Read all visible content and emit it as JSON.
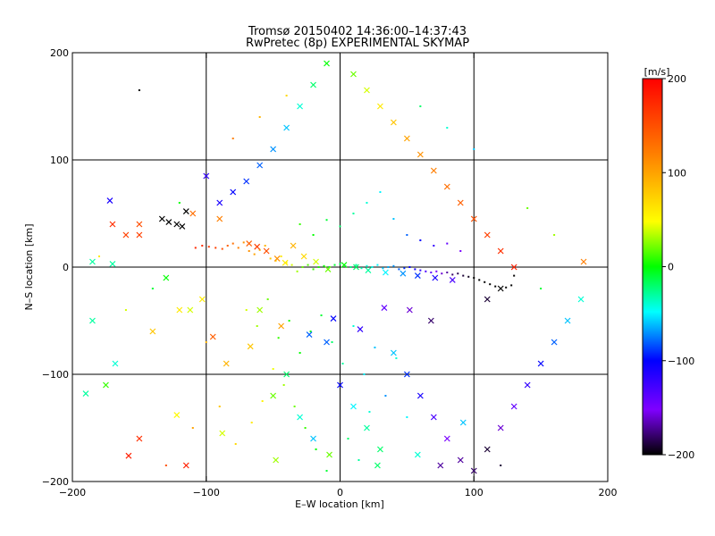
{
  "chart_data": {
    "type": "scatter",
    "title": "Tromsø 20150402 14:36:00–14:37:43",
    "subtitle": "RwPretec (8p) EXPERIMENTAL SKYMAP",
    "xlabel": "E–W location [km]",
    "ylabel": "N–S location [km]",
    "xlim": [
      -200,
      200
    ],
    "ylim": [
      -200,
      200
    ],
    "xticks": [
      "−200",
      "−100",
      "0",
      "100",
      "200"
    ],
    "yticks": [
      "−200",
      "−100",
      "0",
      "100",
      "200"
    ],
    "grid": true,
    "colorbar": {
      "label": "[m/s]",
      "range": [
        -200,
        200
      ],
      "ticks": [
        "200",
        "100",
        "0",
        "−100",
        "−200"
      ],
      "colormap": [
        "#000000",
        "#7f00ff",
        "#0000ff",
        "#00ffff",
        "#00ff00",
        "#ffff00",
        "#ff7f00",
        "#ff0000"
      ]
    },
    "series": [
      {
        "marker": "dot",
        "points": [
          [
            -108,
            18,
            175
          ],
          [
            -103,
            20,
            170
          ],
          [
            -98,
            19,
            165
          ],
          [
            -93,
            18,
            160
          ],
          [
            -88,
            17,
            150
          ],
          [
            -84,
            20,
            140
          ],
          [
            -80,
            22,
            130
          ],
          [
            -76,
            18,
            120
          ],
          [
            -72,
            23,
            110
          ],
          [
            -68,
            15,
            110
          ],
          [
            -64,
            12,
            100
          ],
          [
            -60,
            16,
            95
          ],
          [
            -56,
            20,
            90
          ],
          [
            -52,
            8,
            80
          ],
          [
            -48,
            6,
            70
          ],
          [
            -44,
            10,
            60
          ],
          [
            -40,
            4,
            50
          ],
          [
            -36,
            2,
            40
          ],
          [
            -32,
            -4,
            30
          ],
          [
            -28,
            0,
            20
          ],
          [
            -24,
            2,
            15
          ],
          [
            -20,
            -2,
            10
          ],
          [
            -16,
            0,
            5
          ],
          [
            -12,
            1,
            0
          ],
          [
            -8,
            0,
            -5
          ],
          [
            -4,
            2,
            -10
          ],
          [
            0,
            3,
            -15
          ],
          [
            4,
            1,
            -20
          ],
          [
            8,
            0,
            -25
          ],
          [
            12,
            2,
            -30
          ],
          [
            16,
            -1,
            -35
          ],
          [
            20,
            1,
            -40
          ],
          [
            24,
            0,
            -45
          ],
          [
            28,
            2,
            -50
          ],
          [
            32,
            -1,
            -60
          ],
          [
            36,
            0,
            -65
          ],
          [
            40,
            1,
            -70
          ],
          [
            44,
            -2,
            -80
          ],
          [
            48,
            -1,
            -90
          ],
          [
            52,
            0,
            -100
          ],
          [
            56,
            -2,
            -110
          ],
          [
            60,
            -3,
            -120
          ],
          [
            64,
            -4,
            -130
          ],
          [
            68,
            -5,
            -140
          ],
          [
            72,
            -4,
            -150
          ],
          [
            76,
            -6,
            -160
          ],
          [
            80,
            -5,
            -170
          ],
          [
            84,
            -7,
            -180
          ],
          [
            88,
            -6,
            -185
          ],
          [
            92,
            -8,
            -190
          ],
          [
            96,
            -9,
            -195
          ],
          [
            100,
            -10,
            -200
          ],
          [
            104,
            -12,
            -200
          ],
          [
            108,
            -14,
            -200
          ],
          [
            112,
            -16,
            -200
          ],
          [
            116,
            -18,
            -200
          ],
          [
            120,
            -20,
            -200
          ],
          [
            124,
            -19,
            -200
          ],
          [
            128,
            -17,
            -200
          ],
          [
            130,
            -8,
            -200
          ],
          [
            -70,
            -40,
            40
          ],
          [
            -62,
            -55,
            30
          ],
          [
            -54,
            -30,
            20
          ],
          [
            -46,
            -66,
            10
          ],
          [
            -38,
            -50,
            5
          ],
          [
            -30,
            -80,
            0
          ],
          [
            -22,
            -60,
            -5
          ],
          [
            -14,
            -45,
            -10
          ],
          [
            -6,
            -70,
            -20
          ],
          [
            2,
            -90,
            -30
          ],
          [
            10,
            -55,
            -40
          ],
          [
            18,
            -100,
            -50
          ],
          [
            26,
            -75,
            -60
          ],
          [
            34,
            -120,
            -70
          ],
          [
            42,
            -85,
            -40
          ],
          [
            50,
            -140,
            -50
          ],
          [
            -42,
            -110,
            30
          ],
          [
            -34,
            -130,
            20
          ],
          [
            -26,
            -150,
            10
          ],
          [
            -18,
            -170,
            0
          ],
          [
            -10,
            -190,
            -10
          ],
          [
            -50,
            -95,
            45
          ],
          [
            -58,
            -125,
            55
          ],
          [
            -66,
            -145,
            60
          ],
          [
            -78,
            -165,
            70
          ],
          [
            6,
            -160,
            -20
          ],
          [
            14,
            -180,
            -30
          ],
          [
            22,
            -135,
            -40
          ],
          [
            -30,
            40,
            10
          ],
          [
            -20,
            30,
            0
          ],
          [
            -10,
            44,
            -10
          ],
          [
            0,
            38,
            -20
          ],
          [
            10,
            50,
            -30
          ],
          [
            20,
            60,
            -40
          ],
          [
            30,
            70,
            -50
          ],
          [
            40,
            45,
            -60
          ],
          [
            50,
            30,
            -80
          ],
          [
            60,
            25,
            -100
          ],
          [
            70,
            20,
            -120
          ],
          [
            80,
            22,
            -140
          ],
          [
            90,
            15,
            -150
          ],
          [
            -120,
            60,
            0
          ],
          [
            -140,
            -20,
            -10
          ],
          [
            -160,
            -40,
            40
          ],
          [
            -180,
            10,
            60
          ],
          [
            -90,
            -130,
            80
          ],
          [
            -100,
            -70,
            90
          ],
          [
            -110,
            -150,
            100
          ],
          [
            150,
            -20,
            -10
          ],
          [
            140,
            55,
            20
          ],
          [
            160,
            30,
            30
          ],
          [
            -80,
            120,
            120
          ],
          [
            -60,
            140,
            90
          ],
          [
            -40,
            160,
            70
          ],
          [
            60,
            150,
            -20
          ],
          [
            80,
            130,
            -40
          ],
          [
            100,
            110,
            -60
          ],
          [
            -130,
            -185,
            150
          ],
          [
            120,
            -185,
            -190
          ],
          [
            -150,
            165,
            -200
          ]
        ]
      },
      {
        "marker": "x",
        "points": [
          [
            -133,
            45,
            -200
          ],
          [
            -128,
            42,
            -200
          ],
          [
            -122,
            40,
            -200
          ],
          [
            -118,
            38,
            -200
          ],
          [
            -115,
            52,
            -200
          ],
          [
            -68,
            22,
            140
          ],
          [
            -62,
            19,
            160
          ],
          [
            -55,
            15,
            150
          ],
          [
            -47,
            8,
            110
          ],
          [
            -41,
            4,
            60
          ],
          [
            -35,
            20,
            90
          ],
          [
            -27,
            10,
            70
          ],
          [
            -18,
            5,
            40
          ],
          [
            -9,
            -2,
            20
          ],
          [
            3,
            2,
            0
          ],
          [
            12,
            0,
            -20
          ],
          [
            21,
            -3,
            -30
          ],
          [
            34,
            -5,
            -50
          ],
          [
            47,
            -6,
            -70
          ],
          [
            58,
            -8,
            -90
          ],
          [
            71,
            -10,
            -110
          ],
          [
            84,
            -12,
            -130
          ],
          [
            -90,
            45,
            120
          ],
          [
            -110,
            50,
            130
          ],
          [
            -160,
            30,
            160
          ],
          [
            -150,
            40,
            150
          ],
          [
            -172,
            62,
            -110
          ],
          [
            -170,
            3,
            -30
          ],
          [
            -175,
            -110,
            10
          ],
          [
            -185,
            -50,
            -30
          ],
          [
            -190,
            -118,
            -30
          ],
          [
            -130,
            -10,
            0
          ],
          [
            -120,
            -40,
            60
          ],
          [
            -140,
            -60,
            80
          ],
          [
            -95,
            -65,
            140
          ],
          [
            -85,
            -90,
            90
          ],
          [
            -60,
            -40,
            30
          ],
          [
            -50,
            -120,
            20
          ],
          [
            -40,
            -100,
            -20
          ],
          [
            -30,
            -140,
            -40
          ],
          [
            -20,
            -160,
            -60
          ],
          [
            -10,
            -70,
            -80
          ],
          [
            0,
            -110,
            -100
          ],
          [
            10,
            -130,
            -50
          ],
          [
            20,
            -150,
            -30
          ],
          [
            30,
            -170,
            -20
          ],
          [
            40,
            -80,
            -60
          ],
          [
            50,
            -100,
            -90
          ],
          [
            60,
            -120,
            -110
          ],
          [
            70,
            -140,
            -130
          ],
          [
            80,
            -160,
            -150
          ],
          [
            90,
            -180,
            -170
          ],
          [
            100,
            -190,
            -180
          ],
          [
            110,
            -170,
            -190
          ],
          [
            120,
            -150,
            -160
          ],
          [
            130,
            -130,
            -140
          ],
          [
            140,
            -110,
            -120
          ],
          [
            150,
            -90,
            -100
          ],
          [
            160,
            -70,
            -80
          ],
          [
            170,
            -50,
            -60
          ],
          [
            180,
            -30,
            -40
          ],
          [
            -100,
            85,
            -120
          ],
          [
            -90,
            60,
            -110
          ],
          [
            -80,
            70,
            -100
          ],
          [
            -70,
            80,
            -90
          ],
          [
            -60,
            95,
            -80
          ],
          [
            -50,
            110,
            -70
          ],
          [
            -40,
            130,
            -60
          ],
          [
            -30,
            150,
            -40
          ],
          [
            -20,
            170,
            -20
          ],
          [
            -10,
            190,
            0
          ],
          [
            10,
            180,
            20
          ],
          [
            20,
            165,
            40
          ],
          [
            30,
            150,
            60
          ],
          [
            40,
            135,
            80
          ],
          [
            50,
            120,
            100
          ],
          [
            60,
            105,
            110
          ],
          [
            70,
            90,
            120
          ],
          [
            80,
            75,
            130
          ],
          [
            90,
            60,
            140
          ],
          [
            100,
            45,
            150
          ],
          [
            110,
            30,
            160
          ],
          [
            120,
            15,
            170
          ],
          [
            130,
            0,
            180
          ],
          [
            110,
            -30,
            -190
          ],
          [
            120,
            -20,
            -200
          ],
          [
            -112,
            -40,
            40
          ],
          [
            -103,
            -30,
            60
          ],
          [
            -67,
            -74,
            80
          ],
          [
            -44,
            -55,
            100
          ],
          [
            -23,
            -63,
            -80
          ],
          [
            -5,
            -48,
            -100
          ],
          [
            15,
            -58,
            -120
          ],
          [
            33,
            -38,
            -140
          ],
          [
            52,
            -40,
            -160
          ],
          [
            68,
            -50,
            -180
          ],
          [
            182,
            5,
            120
          ],
          [
            -115,
            -185,
            180
          ],
          [
            -150,
            -160,
            170
          ],
          [
            75,
            -185,
            -170
          ],
          [
            -150,
            30,
            160
          ],
          [
            -170,
            40,
            170
          ],
          [
            -185,
            5,
            -30
          ],
          [
            -168,
            -90,
            -40
          ],
          [
            -122,
            -138,
            50
          ],
          [
            -88,
            -155,
            40
          ],
          [
            -48,
            -180,
            30
          ],
          [
            -8,
            -175,
            20
          ],
          [
            28,
            -185,
            -20
          ],
          [
            58,
            -175,
            -40
          ],
          [
            92,
            -145,
            -60
          ],
          [
            -158,
            -176,
            180
          ]
        ]
      }
    ]
  }
}
